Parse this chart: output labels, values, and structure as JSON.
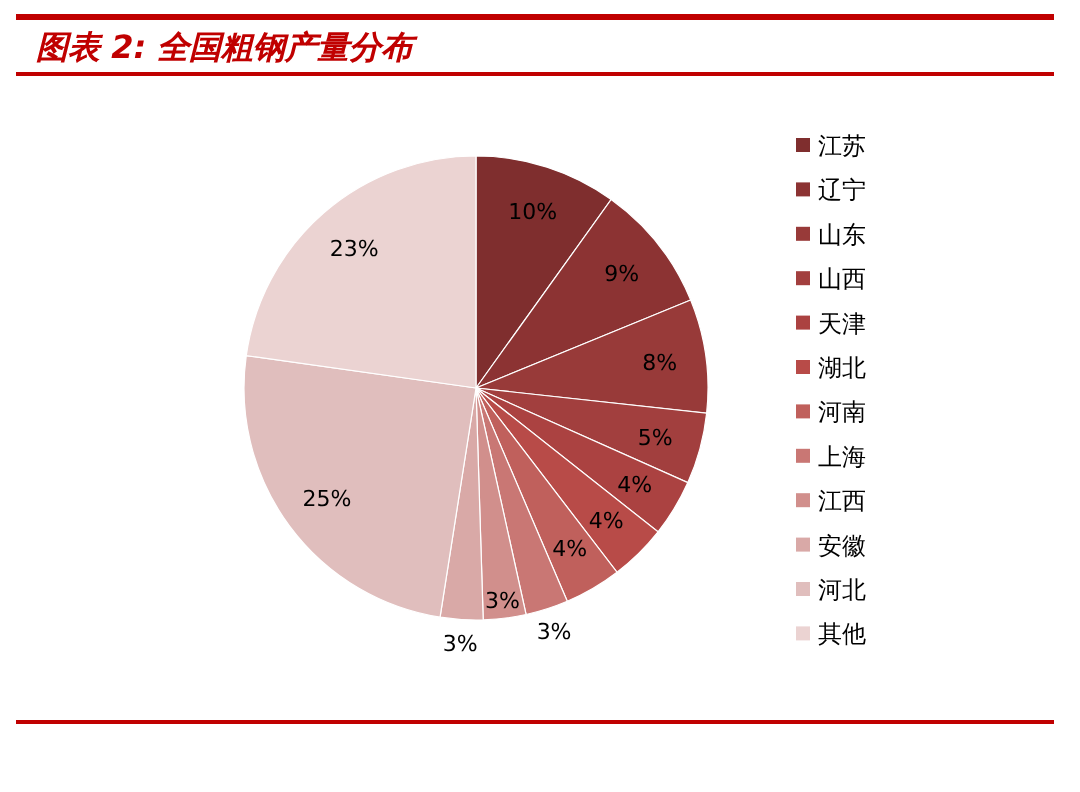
{
  "chart_data": {
    "type": "pie",
    "title": "图表 2:  全国粗钢产量分布",
    "categories": [
      "江苏",
      "辽宁",
      "山东",
      "山西",
      "天津",
      "湖北",
      "河南",
      "上海",
      "江西",
      "安徽",
      "河北",
      "其他"
    ],
    "values": [
      10,
      9,
      8,
      5,
      4,
      4,
      4,
      3,
      3,
      3,
      25,
      23
    ],
    "colors": [
      "#7f2e2e",
      "#8c3333",
      "#983a39",
      "#a23f3e",
      "#ab4241",
      "#b84b48",
      "#c0605c",
      "#c97774",
      "#d18f8c",
      "#d9a9a7",
      "#e0bebd",
      "#ebd3d2"
    ],
    "value_labels": [
      "10%",
      "9%",
      "8%",
      "5%",
      "4%",
      "4%",
      "4%",
      "3%",
      "3%",
      "3%",
      "25%",
      "23%"
    ],
    "legend": "right"
  }
}
